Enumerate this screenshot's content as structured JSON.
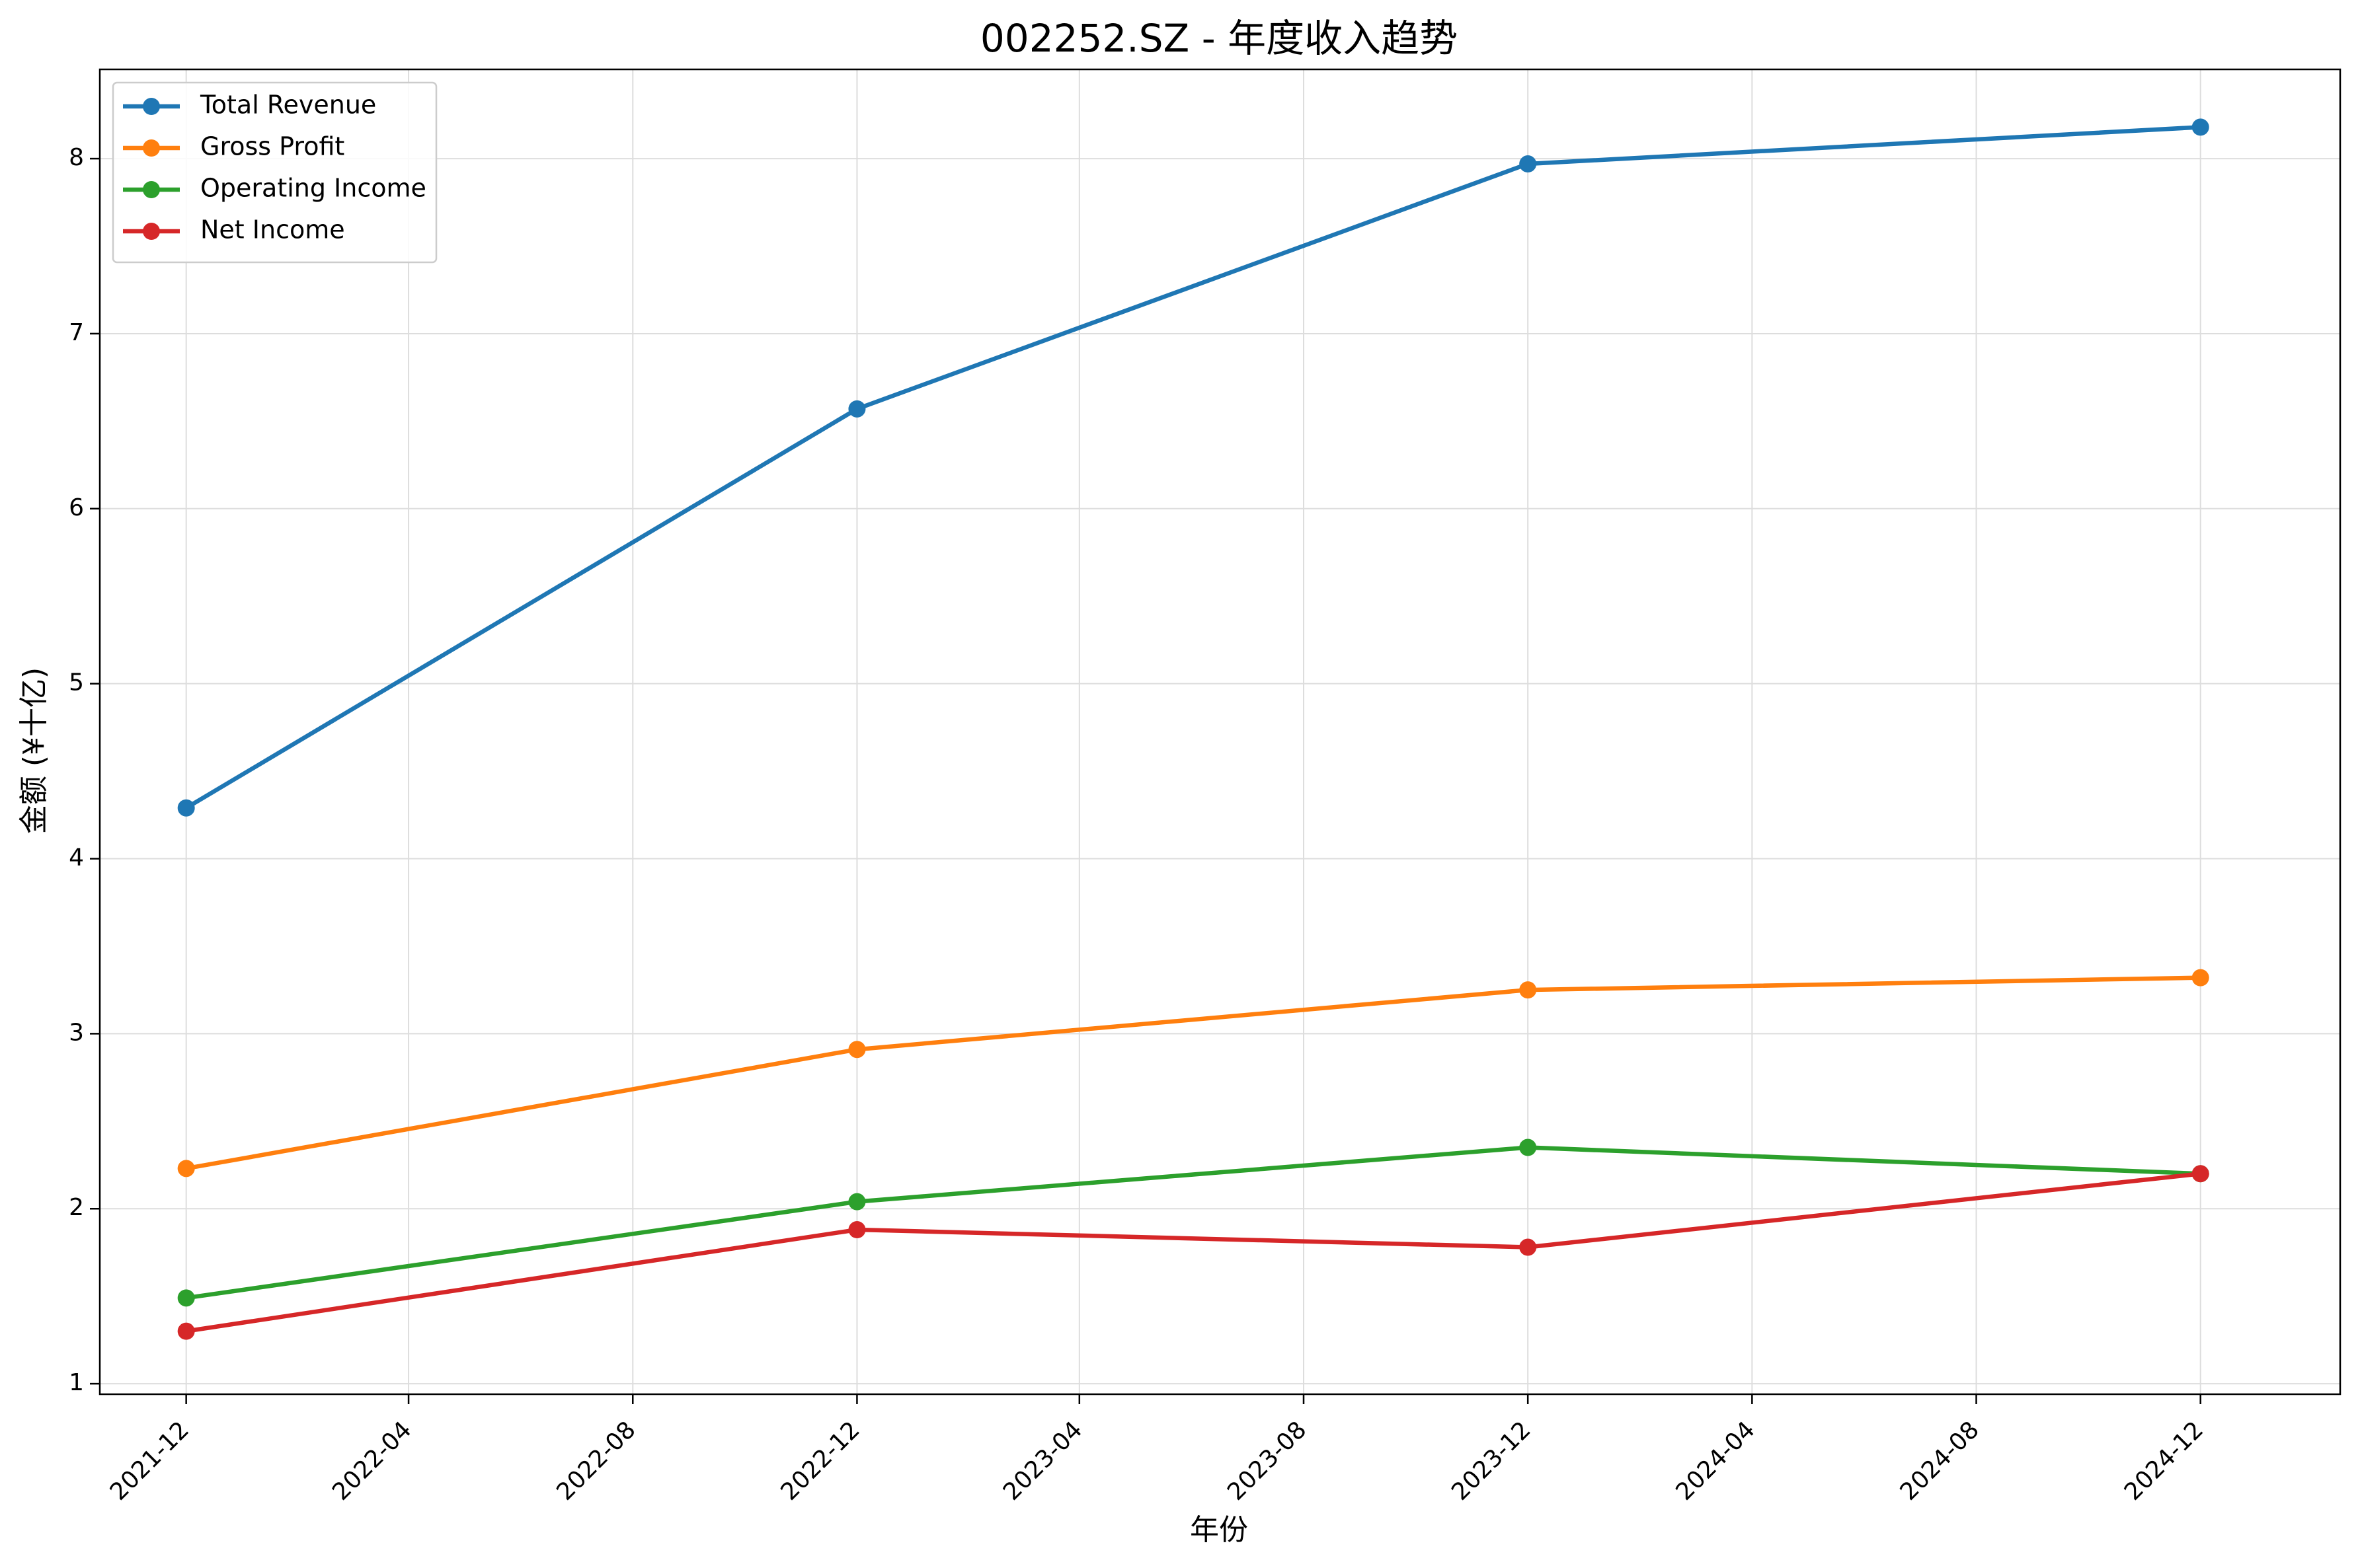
{
  "chart_data": {
    "type": "line",
    "title": "002252.SZ - 年度收入趋势",
    "xlabel": "年份",
    "ylabel": "金额 (¥十亿)",
    "x": [
      "2021-12",
      "2022-12",
      "2023-12",
      "2024-12"
    ],
    "x_ticks": [
      "2021-12",
      "2022-04",
      "2022-08",
      "2022-12",
      "2023-04",
      "2023-08",
      "2023-12",
      "2024-04",
      "2024-08",
      "2024-12"
    ],
    "y_ticks": [
      1,
      2,
      3,
      4,
      5,
      6,
      7,
      8
    ],
    "ylim": [
      0.94,
      8.51
    ],
    "xlim": [
      "2021-10-15",
      "2025-02-15"
    ],
    "grid": true,
    "legend_position": "top-left",
    "series": [
      {
        "name": "Total Revenue",
        "color": "#1f77b4",
        "values": [
          4.29,
          6.57,
          7.97,
          8.18
        ]
      },
      {
        "name": "Gross Profit",
        "color": "#ff7f0e",
        "values": [
          2.23,
          2.91,
          3.25,
          3.32
        ]
      },
      {
        "name": "Operating Income",
        "color": "#2ca02c",
        "values": [
          1.49,
          2.04,
          2.35,
          2.2
        ]
      },
      {
        "name": "Net Income",
        "color": "#d62728",
        "values": [
          1.3,
          1.88,
          1.78,
          2.2
        ]
      }
    ]
  }
}
